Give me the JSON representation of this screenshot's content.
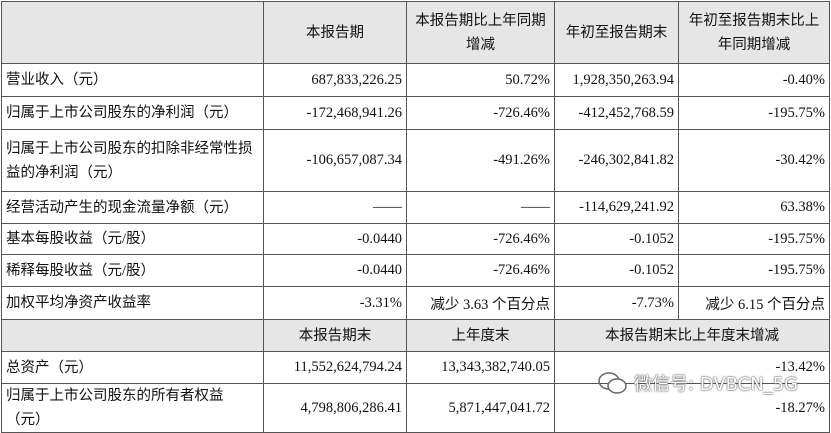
{
  "table": {
    "header": [
      "",
      "本报告期",
      "本报告期比上年同期增减",
      "年初至报告期末",
      "年初至报告期末比上年同期增减"
    ],
    "rows": [
      [
        "营业收入（元）",
        "687,833,226.25",
        "50.72%",
        "1,928,350,263.94",
        "-0.40%"
      ],
      [
        "归属于上市公司股东的净利润（元）",
        "-172,468,941.26",
        "-726.46%",
        "-412,452,768.59",
        "-195.75%"
      ],
      [
        "归属于上市公司股东的扣除非经常性损益的净利润（元）",
        "-106,657,087.34",
        "-491.26%",
        "-246,302,841.82",
        "-30.42%"
      ],
      [
        "经营活动产生的现金流量净额（元）",
        "——",
        "——",
        "-114,629,241.92",
        "63.38%"
      ],
      [
        "基本每股收益（元/股）",
        "-0.0440",
        "-726.46%",
        "-0.1052",
        "-195.75%"
      ],
      [
        "稀释每股收益（元/股）",
        "-0.0440",
        "-726.46%",
        "-0.1052",
        "-195.75%"
      ],
      [
        "加权平均净资产收益率",
        "-3.31%",
        "减少 3.63 个百分点",
        "-7.73%",
        "减少 6.15 个百分点"
      ]
    ],
    "header2": [
      "",
      "本报告期末",
      "上年度末",
      "本报告期末比上年度末增减"
    ],
    "rows2": [
      [
        "总资产（元）",
        "11,552,624,794.24",
        "13,343,382,740.05",
        "-13.42%"
      ],
      [
        "归属于上市公司股东的所有者权益（元）",
        "4,798,806,286.41",
        "5,871,447,041.72",
        "-18.27%"
      ]
    ]
  },
  "watermark": "微信号: DVBCN_5G"
}
